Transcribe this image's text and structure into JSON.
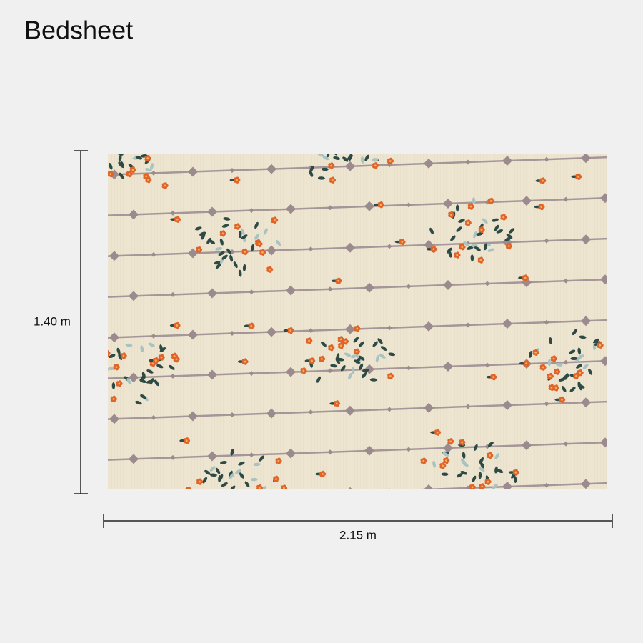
{
  "title": "Bedsheet",
  "dimensions": {
    "height": "1.40 m",
    "width": "2.15 m"
  }
}
